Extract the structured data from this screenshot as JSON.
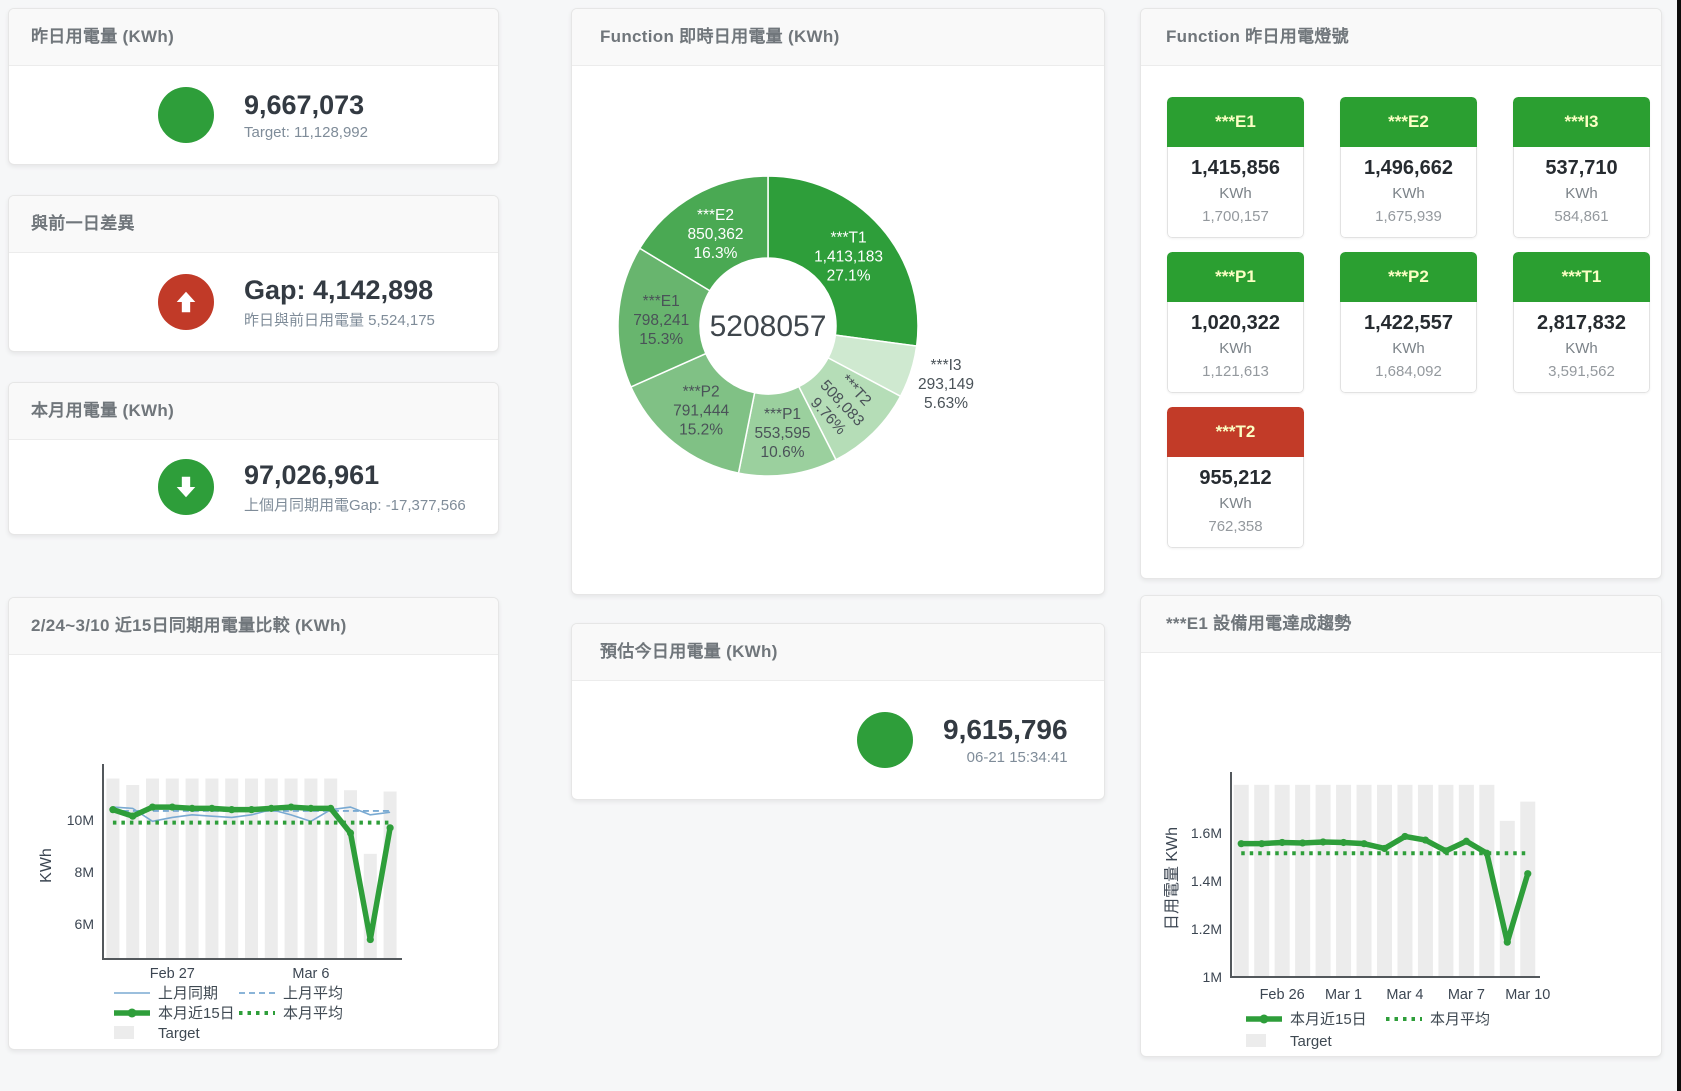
{
  "cards": {
    "yesterday": {
      "title": "昨日用電量 (KWh)",
      "value": "9,667,073",
      "subtitle": "Target: 11,128,992"
    },
    "day_gap": {
      "title": "與前一日差異",
      "value": "Gap: 4,142,898",
      "subtitle": "昨日與前日用電量 5,524,175"
    },
    "month": {
      "title": "本月用電量 (KWh)",
      "value": "97,026,961",
      "subtitle": "上個月同期用電Gap: -17,377,566"
    },
    "compare": {
      "title": "2/24~3/10 近15日同期用電量比較 (KWh)"
    },
    "realtime": {
      "title": "Function 即時日用電量 (KWh)"
    },
    "estimate": {
      "title": "預估今日用電量 (KWh)",
      "value": "9,615,796",
      "subtitle": "06-21 15:34:41"
    },
    "lights": {
      "title": "Function 昨日用電燈號",
      "tiles": [
        {
          "label": "***E1",
          "value": "1,415,856",
          "unit": "KWh",
          "target": "1,700,157",
          "status": "green"
        },
        {
          "label": "***E2",
          "value": "1,496,662",
          "unit": "KWh",
          "target": "1,675,939",
          "status": "green"
        },
        {
          "label": "***I3",
          "value": "537,710",
          "unit": "KWh",
          "target": "584,861",
          "status": "green"
        },
        {
          "label": "***P1",
          "value": "1,020,322",
          "unit": "KWh",
          "target": "1,121,613",
          "status": "green"
        },
        {
          "label": "***P2",
          "value": "1,422,557",
          "unit": "KWh",
          "target": "1,684,092",
          "status": "green"
        },
        {
          "label": "***T1",
          "value": "2,817,832",
          "unit": "KWh",
          "target": "3,591,562",
          "status": "green"
        },
        {
          "label": "***T2",
          "value": "955,212",
          "unit": "KWh",
          "target": "762,358",
          "status": "red"
        }
      ]
    },
    "trend": {
      "title": "***E1 設備用電達成趨勢"
    }
  },
  "colors": {
    "green": "#2e9e3a",
    "red": "#c13a28",
    "blue_line": "#7aaad2",
    "bar_gray": "#ececec",
    "tile_green": "#2b9f31",
    "tile_red": "#c23b28"
  },
  "chart_data": [
    {
      "id": "realtime_donut",
      "type": "pie",
      "title": "Function 即時日用電量 (KWh)",
      "center_total": "5208057",
      "slices": [
        {
          "name": "***T1",
          "value": 1413183,
          "display": "1,413,183",
          "pct": "27.1%",
          "color": "#2e9e3a",
          "label": "inside-white"
        },
        {
          "name": "***I3",
          "value": 293149,
          "display": "293,149",
          "pct": "5.63%",
          "color": "#cfe9d0",
          "label": "outside"
        },
        {
          "name": "***T2",
          "value": 508083,
          "display": "508,083",
          "pct": "9.76%",
          "color": "#b5ddb7",
          "label": "inside-rotated"
        },
        {
          "name": "***P1",
          "value": 553595,
          "display": "553,595",
          "pct": "10.6%",
          "color": "#9bd09e",
          "label": "inside"
        },
        {
          "name": "***P2",
          "value": 791444,
          "display": "791,444",
          "pct": "15.2%",
          "color": "#80c185",
          "label": "inside"
        },
        {
          "name": "***E1",
          "value": 798241,
          "display": "798,241",
          "pct": "15.3%",
          "color": "#68b56e",
          "label": "inside"
        },
        {
          "name": "***E2",
          "value": 850362,
          "display": "850,362",
          "pct": "16.3%",
          "color": "#4aa953",
          "label": "inside-white"
        }
      ]
    },
    {
      "id": "compare_chart",
      "type": "line",
      "title": "2/24~3/10 近15日同期用電量比較 (KWh)",
      "ylabel": "KWh",
      "ylim": [
        4650000,
        11850000
      ],
      "yticks": [
        {
          "value": 6000000,
          "label": "6M"
        },
        {
          "value": 8000000,
          "label": "8M"
        },
        {
          "value": 10000000,
          "label": "10M"
        }
      ],
      "x_categories": [
        "2/24",
        "2/25",
        "2/26",
        "2/27",
        "2/28",
        "3/1",
        "3/2",
        "3/3",
        "3/4",
        "3/5",
        "3/6",
        "3/7",
        "3/8",
        "3/9",
        "3/10"
      ],
      "xticks": [
        {
          "index": 3,
          "label": "Feb 27"
        },
        {
          "index": 10,
          "label": "Mar 6"
        }
      ],
      "series": [
        {
          "name": "Target",
          "type": "bar",
          "color": "#ececec",
          "values": [
            11600000,
            11350000,
            11600000,
            11600000,
            11600000,
            11600000,
            11600000,
            11600000,
            11600000,
            11600000,
            11600000,
            11600000,
            11150000,
            8700000,
            11100000
          ]
        },
        {
          "name": "上月同期",
          "type": "line",
          "style": "solid-thin",
          "color": "#7aaad2",
          "values": [
            10500000,
            10450000,
            9950000,
            10100000,
            10200000,
            10150000,
            10100000,
            10200000,
            10400000,
            10200000,
            9950000,
            10400000,
            10500000,
            10200000,
            10300000
          ]
        },
        {
          "name": "上月平均",
          "type": "line",
          "style": "dashed",
          "color": "#7aaad2",
          "values": [
            10350000,
            10350000,
            10350000,
            10350000,
            10350000,
            10350000,
            10350000,
            10350000,
            10350000,
            10350000,
            10350000,
            10350000,
            10350000,
            10350000,
            10350000
          ]
        },
        {
          "name": "本月近15日",
          "type": "line",
          "style": "solid-thick",
          "color": "#2e9e3a",
          "values": [
            10400000,
            10150000,
            10500000,
            10500000,
            10450000,
            10450000,
            10400000,
            10400000,
            10450000,
            10500000,
            10450000,
            10450000,
            9500000,
            5400000,
            9700000
          ]
        },
        {
          "name": "本月平均",
          "type": "line",
          "style": "dotted",
          "color": "#2e9e3a",
          "values": [
            9900000,
            9900000,
            9900000,
            9900000,
            9900000,
            9900000,
            9900000,
            9900000,
            9900000,
            9900000,
            9900000,
            9900000,
            9900000,
            9900000,
            9900000
          ]
        }
      ],
      "legend_rows": [
        [
          "上月同期",
          "上月平均"
        ],
        [
          "本月近15日",
          "本月平均"
        ],
        [
          "Target"
        ]
      ]
    },
    {
      "id": "trend_chart",
      "type": "line",
      "title": "***E1 設備用電達成趨勢",
      "ylabel": "日用電量 KWh",
      "ylim": [
        1000000,
        1820000
      ],
      "yticks": [
        {
          "value": 1000000,
          "label": "1M"
        },
        {
          "value": 1200000,
          "label": "1.2M"
        },
        {
          "value": 1400000,
          "label": "1.4M"
        },
        {
          "value": 1600000,
          "label": "1.6M"
        }
      ],
      "x_categories": [
        "2/24",
        "2/25",
        "2/26",
        "2/27",
        "2/28",
        "3/1",
        "3/2",
        "3/3",
        "3/4",
        "3/5",
        "3/6",
        "3/7",
        "3/8",
        "3/9",
        "3/10"
      ],
      "xticks": [
        {
          "index": 2,
          "label": "Feb 26"
        },
        {
          "index": 5,
          "label": "Mar 1"
        },
        {
          "index": 8,
          "label": "Mar 4"
        },
        {
          "index": 11,
          "label": "Mar 7"
        },
        {
          "index": 14,
          "label": "Mar 10"
        }
      ],
      "series": [
        {
          "name": "Target",
          "type": "bar",
          "color": "#ececec",
          "values": [
            1800000,
            1800000,
            1800000,
            1800000,
            1800000,
            1800000,
            1800000,
            1800000,
            1800000,
            1800000,
            1800000,
            1800000,
            1800000,
            1650000,
            1730000
          ]
        },
        {
          "name": "本月近15日",
          "type": "line",
          "style": "solid-thick",
          "color": "#2e9e3a",
          "values": [
            1555000,
            1555000,
            1560000,
            1558000,
            1562000,
            1560000,
            1555000,
            1535000,
            1585000,
            1570000,
            1525000,
            1565000,
            1515000,
            1145000,
            1430000
          ]
        },
        {
          "name": "本月平均",
          "type": "line",
          "style": "dotted",
          "color": "#2e9e3a",
          "values": [
            1515000,
            1515000,
            1515000,
            1515000,
            1515000,
            1515000,
            1515000,
            1515000,
            1515000,
            1515000,
            1515000,
            1515000,
            1515000,
            1515000,
            1515000
          ]
        }
      ],
      "legend_rows": [
        [
          "本月近15日",
          "本月平均"
        ],
        [
          "Target"
        ]
      ]
    }
  ]
}
